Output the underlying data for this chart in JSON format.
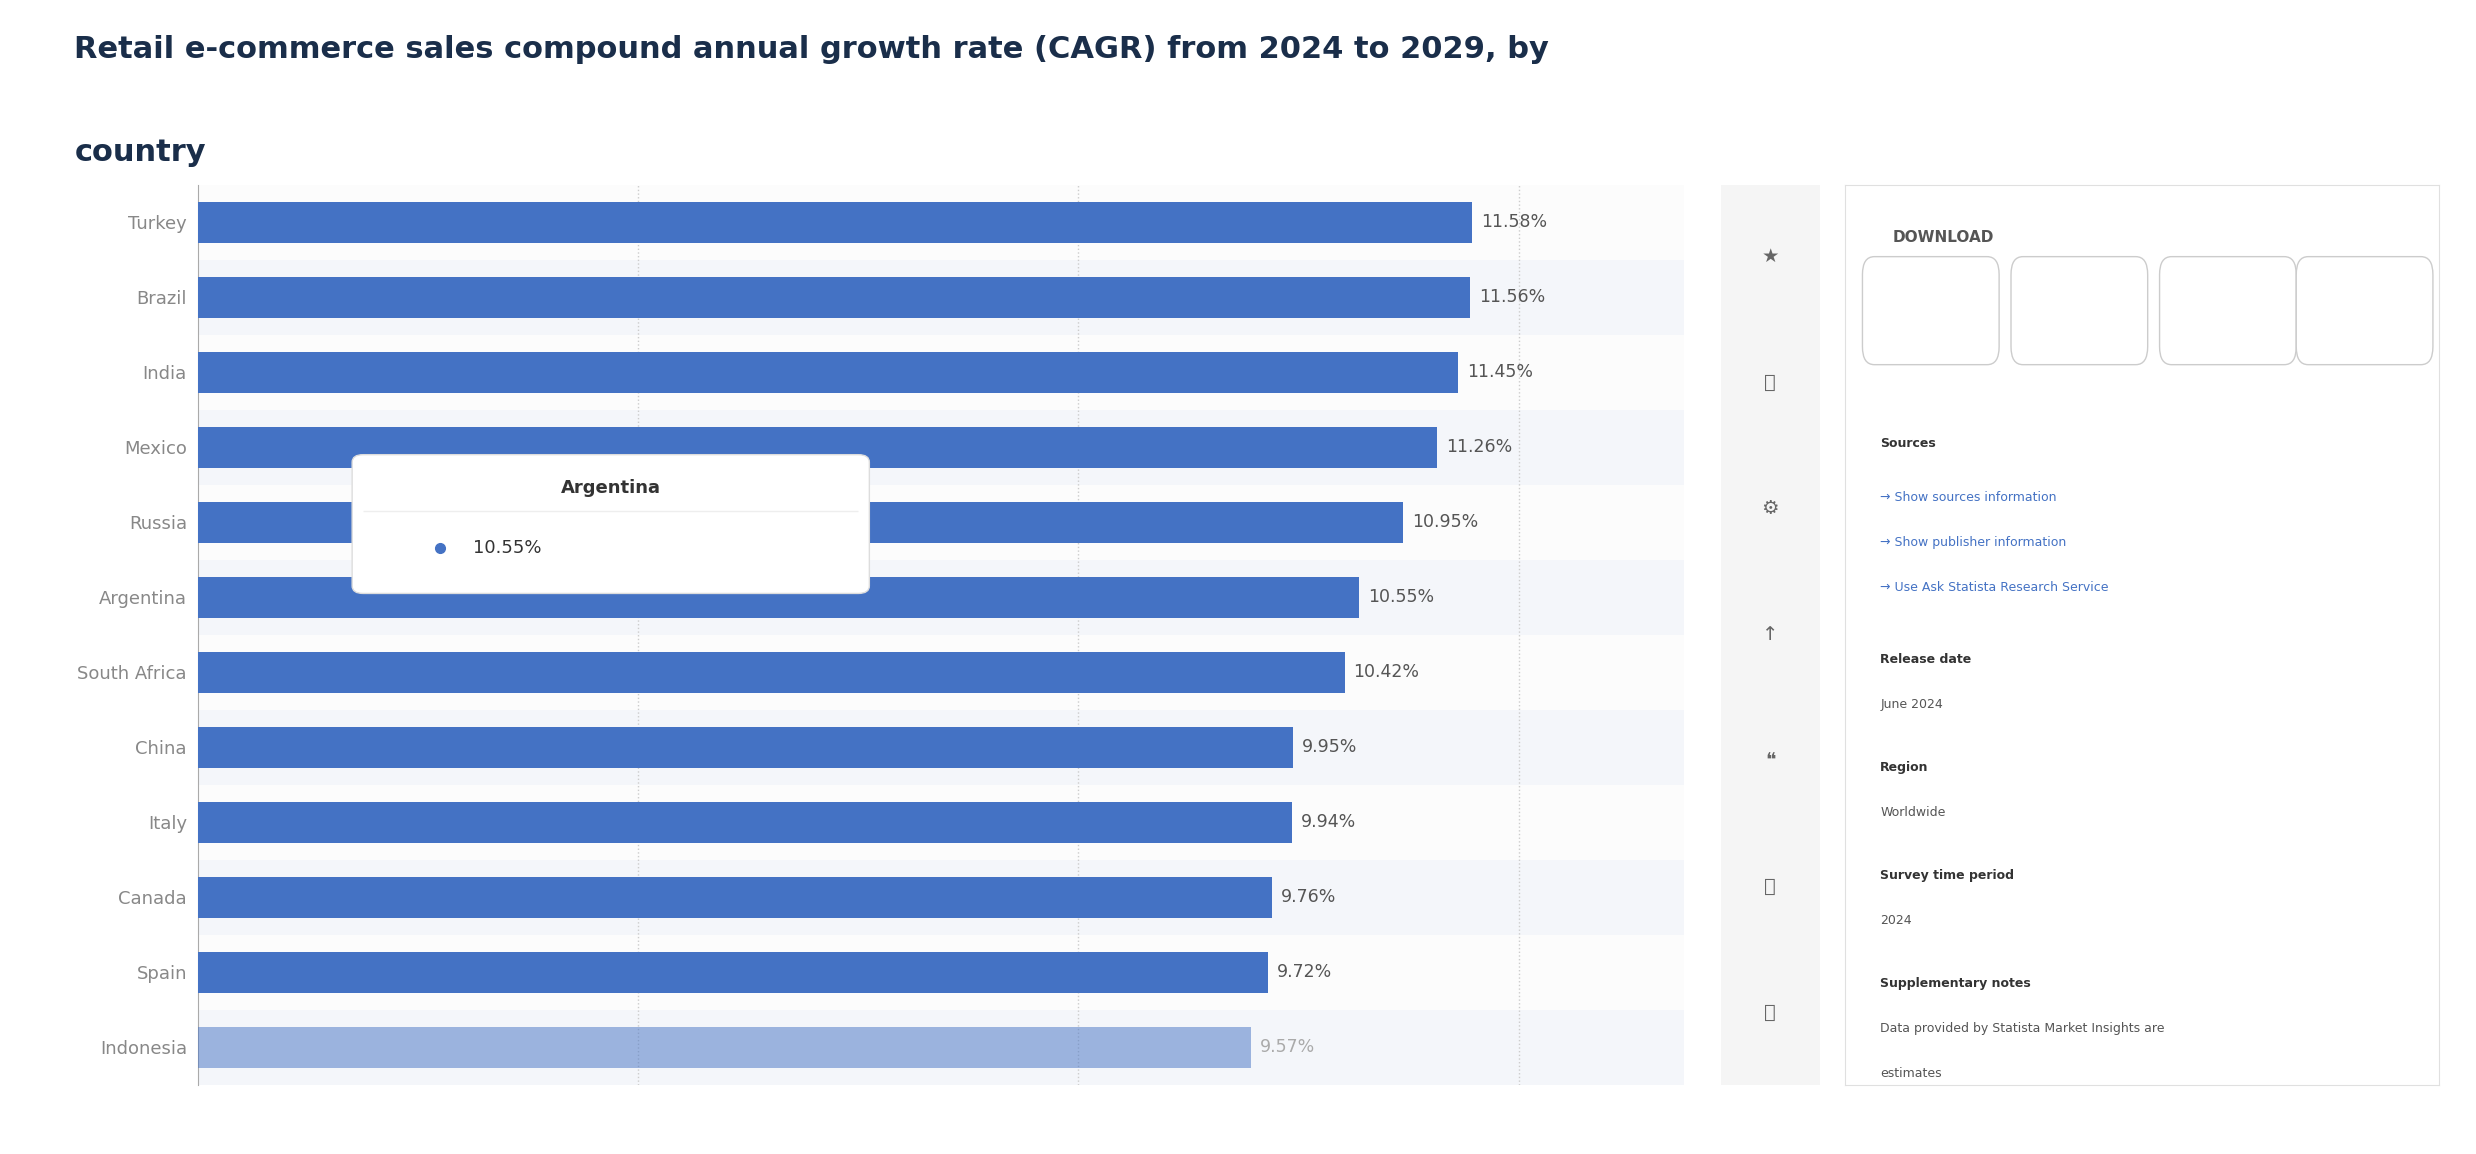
{
  "title_line1": "Retail e-commerce sales compound annual growth rate (CAGR) from 2024 to 2029, by",
  "title_line2": "country",
  "countries": [
    "Turkey",
    "Brazil",
    "India",
    "Mexico",
    "Russia",
    "Argentina",
    "South Africa",
    "China",
    "Italy",
    "Canada",
    "Spain",
    "Indonesia"
  ],
  "values": [
    11.58,
    11.56,
    11.45,
    11.26,
    10.95,
    10.55,
    10.42,
    9.95,
    9.94,
    9.76,
    9.72,
    9.57
  ],
  "bar_color": "#4472C4",
  "bar_color_faded": "#4472C480",
  "value_color": "#555555",
  "label_color": "#888888",
  "title_color": "#1a2e4a",
  "bg_color": "#ffffff",
  "chart_bg": "#f9f9f9",
  "grid_color": "#cccccc",
  "tooltip_country": "Argentina",
  "tooltip_value": "10.55%",
  "xlabel": "",
  "xlim": [
    0,
    13
  ],
  "highlighted_bar": "Indonesia"
}
